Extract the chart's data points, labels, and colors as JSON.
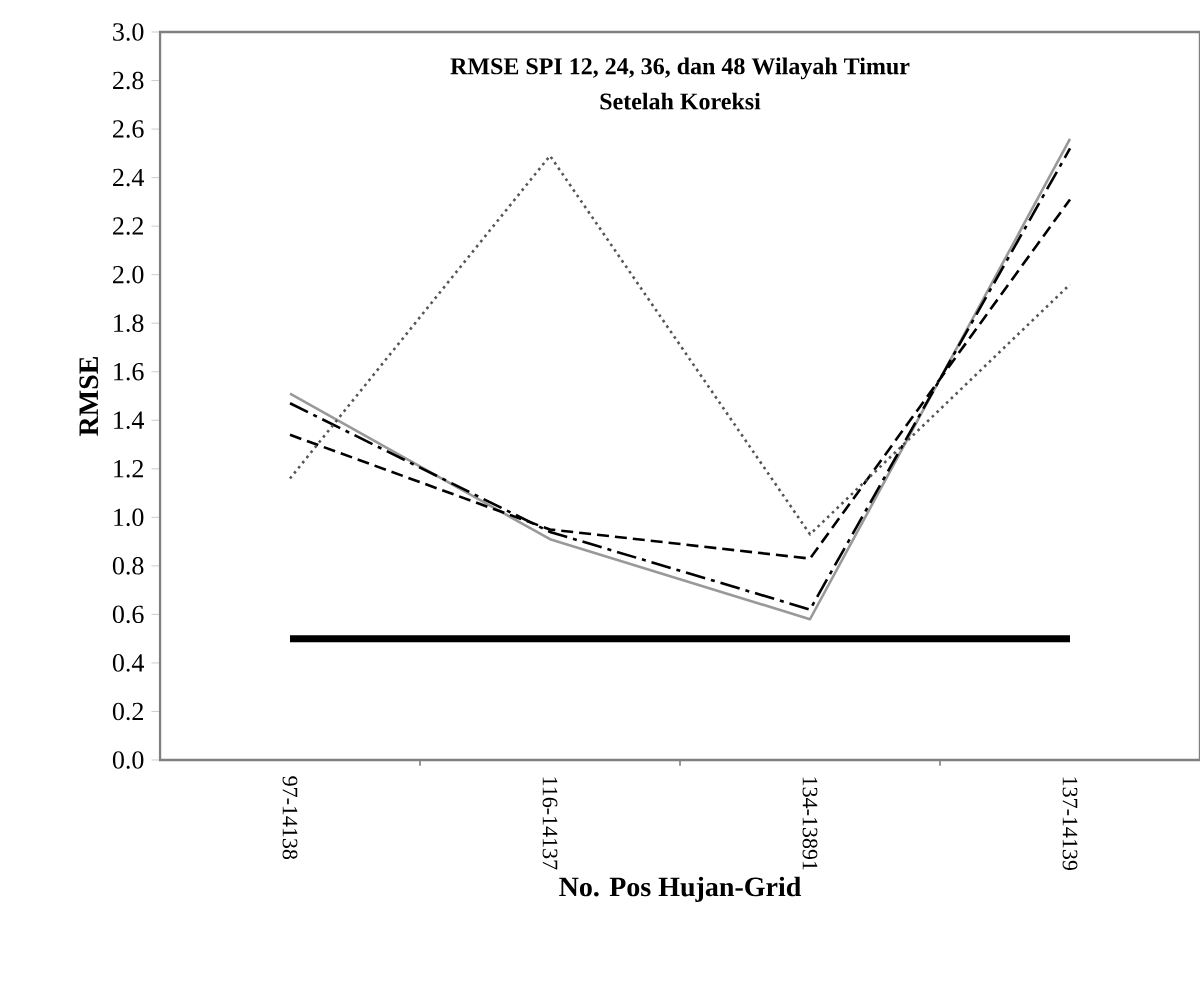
{
  "chart_data": {
    "type": "line",
    "title": "RMSE  SPI 12, 24, 36, dan  48 Wilayah Timur",
    "subtitle": "Setelah Koreksi",
    "xlabel": "No. Pos Hujan-Grid",
    "ylabel": "RMSE",
    "categories": [
      "97-14138",
      "116-14137",
      "134-13891",
      "137-14139"
    ],
    "series": [
      {
        "color": "#999999",
        "values": [
          1.51,
          0.91,
          0.58,
          2.56
        ],
        "line_style": "solid"
      },
      {
        "color": "#000000",
        "values": [
          1.47,
          0.94,
          0.62,
          2.52
        ],
        "line_style": "dashdot"
      },
      {
        "color": "#000000",
        "values": [
          1.34,
          0.95,
          0.83,
          2.31
        ],
        "line_style": "dashed"
      },
      {
        "color": "#555555",
        "values": [
          1.16,
          2.49,
          0.93,
          1.96
        ],
        "line_style": "dotted"
      }
    ],
    "ref_lines": [
      {
        "axis": "y",
        "value": 0.5,
        "color": "#000000",
        "line_style": "solid"
      }
    ],
    "ylim": [
      0,
      3
    ],
    "yticks": [
      {
        "value": 0,
        "label": "0.0"
      },
      0.2,
      0.4,
      0.6,
      0.8,
      {
        "value": 1,
        "label": "1.0"
      },
      1.2,
      1.4,
      1.6,
      1.8,
      {
        "value": 2,
        "label": "2.0"
      },
      2.2,
      2.4,
      2.6,
      2.8,
      {
        "value": 3,
        "label": "3.0"
      }
    ],
    "grid": false,
    "marker": "none"
  }
}
